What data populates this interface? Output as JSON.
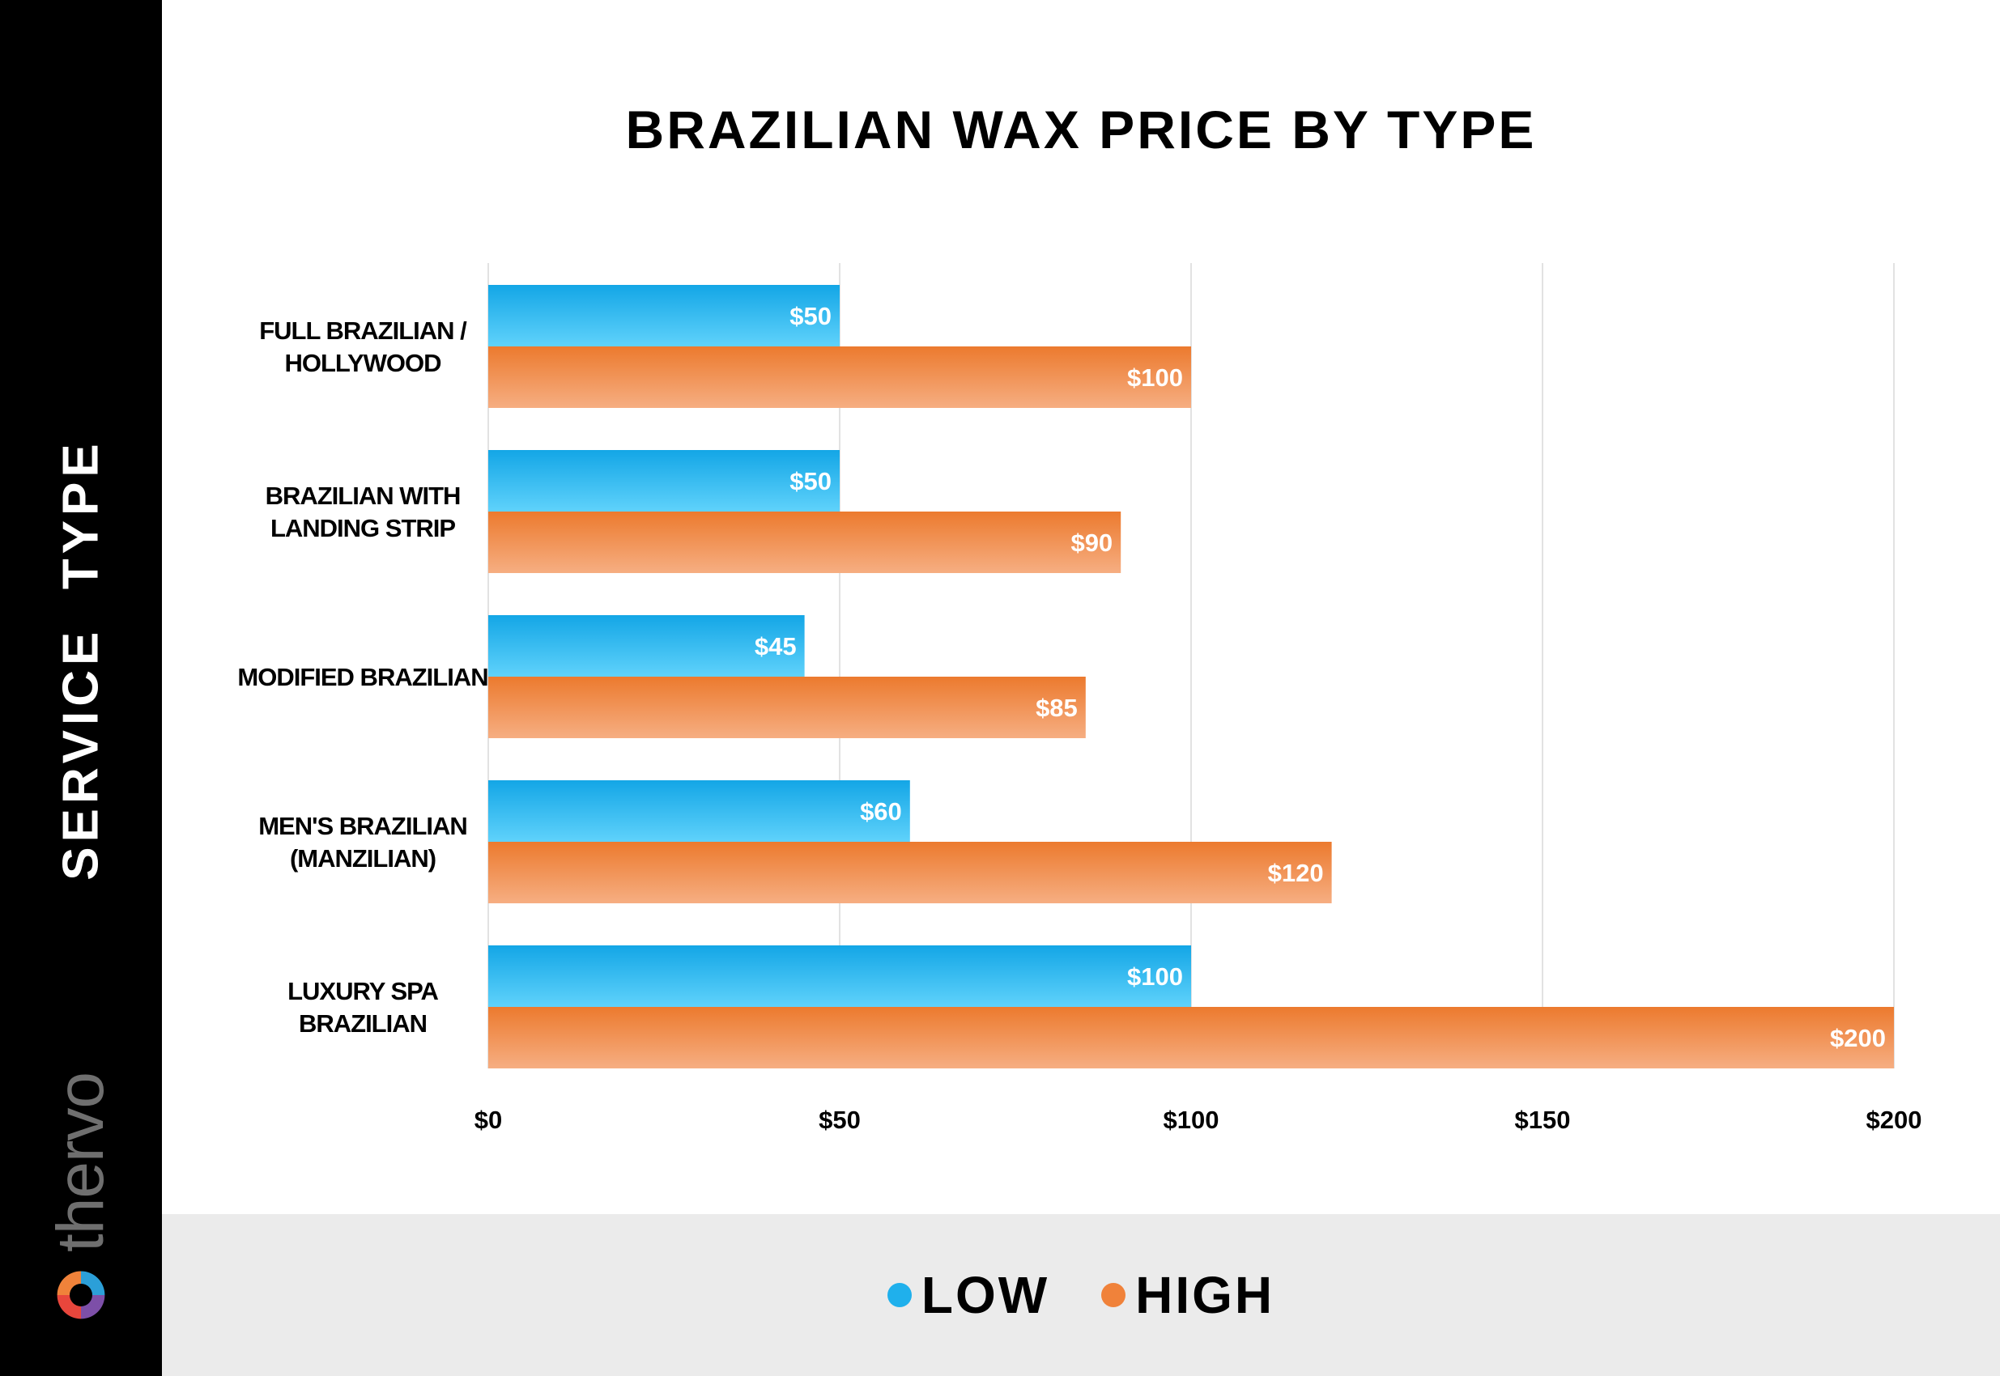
{
  "sidebar": {
    "axis_title": "SERVICE  TYPE",
    "brand": "thervo"
  },
  "chart_data": {
    "type": "bar",
    "orientation": "horizontal",
    "title": "BRAZILIAN WAX PRICE BY TYPE",
    "ylabel": "SERVICE  TYPE",
    "xlabel": "",
    "categories": [
      [
        "FULL BRAZILIAN /",
        "HOLLYWOOD"
      ],
      [
        "BRAZILIAN WITH",
        "LANDING STRIP"
      ],
      [
        "MODIFIED BRAZILIAN"
      ],
      [
        "MEN'S BRAZILIAN",
        "(MANZILIAN)"
      ],
      [
        "LUXURY SPA",
        "BRAZILIAN"
      ]
    ],
    "series": [
      {
        "name": "LOW",
        "values": [
          50,
          50,
          45,
          60,
          100
        ],
        "labels": [
          "$50",
          "$50",
          "$45",
          "$60",
          "$100"
        ],
        "color": "#1fb0ec"
      },
      {
        "name": "HIGH",
        "values": [
          100,
          90,
          85,
          120,
          200
        ],
        "labels": [
          "$100",
          "$90",
          "$85",
          "$120",
          "$200"
        ],
        "color": "#f0823a"
      }
    ],
    "xlim": [
      0,
      200
    ],
    "xticks": [
      0,
      50,
      100,
      150,
      200
    ],
    "xtick_labels": [
      "$0",
      "$50",
      "$100",
      "$150",
      "$200"
    ],
    "grid": true,
    "legend_position": "bottom"
  },
  "legend": {
    "low_label": "LOW",
    "high_label": "HIGH",
    "low_color": "#1fb0ec",
    "high_color": "#f0823a"
  }
}
